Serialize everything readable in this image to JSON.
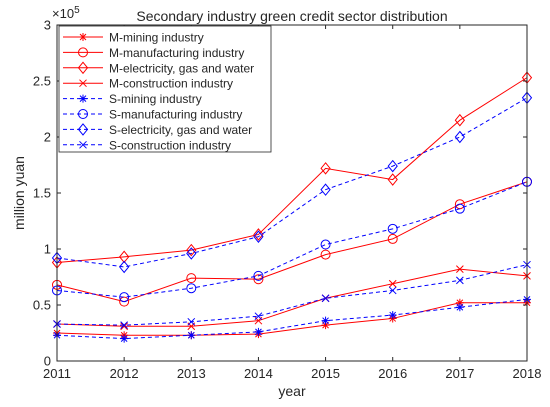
{
  "chart_data": {
    "type": "line",
    "title": "Secondary industry green credit sector distribution",
    "xlabel": "year",
    "ylabel": "million yuan",
    "y_exponent_label": "×10",
    "y_exponent_power": "5",
    "x": [
      2011,
      2012,
      2013,
      2014,
      2015,
      2016,
      2017,
      2018
    ],
    "x_tick_labels": [
      "2011",
      "2012",
      "2013",
      "2014",
      "2015",
      "2016",
      "2017",
      "2018"
    ],
    "xlim": [
      2011,
      2018
    ],
    "ylim": [
      0,
      3
    ],
    "y_ticks": [
      0,
      0.5,
      1,
      1.5,
      2,
      2.5,
      3
    ],
    "y_tick_labels": [
      "0",
      "0.5",
      "1",
      "1.5",
      "2",
      "2.5",
      "3"
    ],
    "grid": false,
    "legend_position": "top-left",
    "series": [
      {
        "name": "M-mining industry",
        "color": "#ff0000",
        "line": "solid",
        "marker": "asterisk",
        "values": [
          0.25,
          0.23,
          0.23,
          0.24,
          0.32,
          0.38,
          0.52,
          0.52
        ]
      },
      {
        "name": "M-manufacturing industry",
        "color": "#ff0000",
        "line": "solid",
        "marker": "circle",
        "values": [
          0.68,
          0.53,
          0.74,
          0.73,
          0.95,
          1.09,
          1.4,
          1.6
        ]
      },
      {
        "name": "M-electricity, gas and water",
        "color": "#ff0000",
        "line": "solid",
        "marker": "diamond",
        "values": [
          0.88,
          0.93,
          0.99,
          1.13,
          1.72,
          1.62,
          2.15,
          2.53
        ]
      },
      {
        "name": "M-construction industry",
        "color": "#ff0000",
        "line": "solid",
        "marker": "x",
        "values": [
          0.33,
          0.31,
          0.31,
          0.36,
          0.56,
          0.69,
          0.82,
          0.76
        ]
      },
      {
        "name": "S-mining industry",
        "color": "#0000ff",
        "line": "dashed",
        "marker": "asterisk",
        "values": [
          0.23,
          0.2,
          0.23,
          0.26,
          0.36,
          0.41,
          0.48,
          0.55
        ]
      },
      {
        "name": "S-manufacturing industry",
        "color": "#0000ff",
        "line": "dashed",
        "marker": "circle",
        "values": [
          0.63,
          0.57,
          0.65,
          0.76,
          1.04,
          1.18,
          1.36,
          1.6
        ]
      },
      {
        "name": "S-electricity, gas and water",
        "color": "#0000ff",
        "line": "dashed",
        "marker": "diamond",
        "values": [
          0.92,
          0.84,
          0.96,
          1.11,
          1.53,
          1.74,
          2.0,
          2.35
        ]
      },
      {
        "name": "S-construction industry",
        "color": "#0000ff",
        "line": "dashed",
        "marker": "x",
        "values": [
          0.33,
          0.32,
          0.35,
          0.4,
          0.56,
          0.63,
          0.72,
          0.86
        ]
      }
    ]
  }
}
